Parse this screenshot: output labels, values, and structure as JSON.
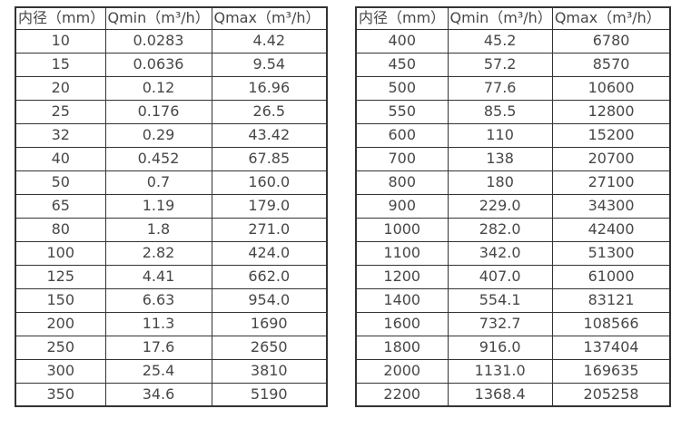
{
  "colors": {
    "background": "#ffffff",
    "border": "#333333",
    "text": "#474747"
  },
  "tables": [
    {
      "name": "flow-rate-table-small-diameters",
      "headers": [
        "内径（mm）",
        "Qmin（m³/h）",
        "Qmax（m³/h）"
      ],
      "rows": [
        [
          "10",
          "0.0283",
          "4.42"
        ],
        [
          "15",
          "0.0636",
          "9.54"
        ],
        [
          "20",
          "0.12",
          "16.96"
        ],
        [
          "25",
          "0.176",
          "26.5"
        ],
        [
          "32",
          "0.29",
          "43.42"
        ],
        [
          "40",
          "0.452",
          "67.85"
        ],
        [
          "50",
          "0.7",
          "160.0"
        ],
        [
          "65",
          "1.19",
          "179.0"
        ],
        [
          "80",
          "1.8",
          "271.0"
        ],
        [
          "100",
          "2.82",
          "424.0"
        ],
        [
          "125",
          "4.41",
          "662.0"
        ],
        [
          "150",
          "6.63",
          "954.0"
        ],
        [
          "200",
          "11.3",
          "1690"
        ],
        [
          "250",
          "17.6",
          "2650"
        ],
        [
          "300",
          "25.4",
          "3810"
        ],
        [
          "350",
          "34.6",
          "5190"
        ]
      ]
    },
    {
      "name": "flow-rate-table-large-diameters",
      "headers": [
        "内径（mm）",
        "Qmin（m³/h）",
        "Qmax（m³/h）"
      ],
      "rows": [
        [
          "400",
          "45.2",
          "6780"
        ],
        [
          "450",
          "57.2",
          "8570"
        ],
        [
          "500",
          "77.6",
          "10600"
        ],
        [
          "550",
          "85.5",
          "12800"
        ],
        [
          "600",
          "110",
          "15200"
        ],
        [
          "700",
          "138",
          "20700"
        ],
        [
          "800",
          "180",
          "27100"
        ],
        [
          "900",
          "229.0",
          "34300"
        ],
        [
          "1000",
          "282.0",
          "42400"
        ],
        [
          "1100",
          "342.0",
          "51300"
        ],
        [
          "1200",
          "407.0",
          "61000"
        ],
        [
          "1400",
          "554.1",
          "83121"
        ],
        [
          "1600",
          "732.7",
          "108566"
        ],
        [
          "1800",
          "916.0",
          "137404"
        ],
        [
          "2000",
          "1131.0",
          "169635"
        ],
        [
          "2200",
          "1368.4",
          "205258"
        ]
      ]
    }
  ],
  "cell_names": [
    "diameter-cell",
    "qmin-cell",
    "qmax-cell"
  ]
}
